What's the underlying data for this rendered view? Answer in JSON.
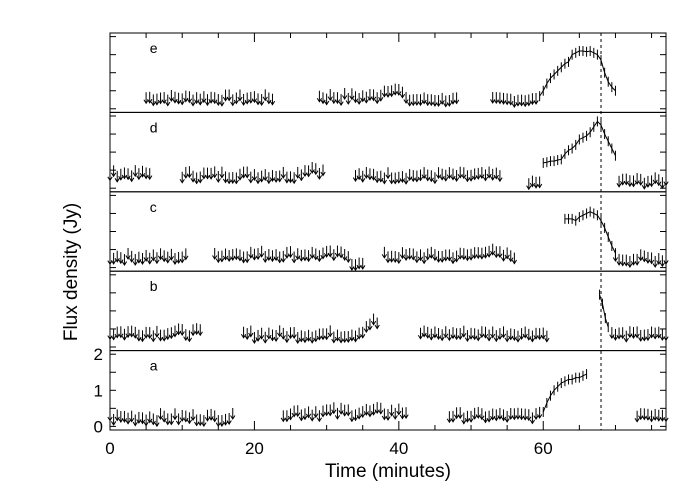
{
  "chart_data": {
    "type": "scatter",
    "xlabel": "Time (minutes)",
    "ylabel": "Flux density (Jy)",
    "xlim": [
      0,
      77
    ],
    "x_ticks": [
      "0",
      "20",
      "40",
      "60"
    ],
    "y_ticks_panel_a": [
      "0",
      "1",
      "2"
    ],
    "ylim_panel": [
      -0.1,
      2.1
    ],
    "grid": false,
    "legend": "none",
    "reference_line_x": 68,
    "reference_line_style": "dotted",
    "marker": "downward arrow (upper limit) / error bar (detection)",
    "panels": [
      {
        "label": "e",
        "segments": [
          {
            "x_start": 5,
            "x_end": 22.5,
            "level": 0.35,
            "noise": 0.08,
            "kind": "limit"
          },
          {
            "x_start": 29,
            "x_end": 40.5,
            "level": 0.38,
            "noise": 0.1,
            "bump_at": 39,
            "bump": 0.25,
            "kind": "limit"
          },
          {
            "x_start": 41,
            "x_end": 48,
            "level": 0.3,
            "noise": 0.06,
            "kind": "limit"
          },
          {
            "x_start": 53,
            "x_end": 59,
            "level": 0.3,
            "noise": 0.06,
            "kind": "limit"
          }
        ],
        "detections": [
          {
            "x": 59.5,
            "y": 0.35
          },
          {
            "x": 60.0,
            "y": 0.5
          },
          {
            "x": 60.5,
            "y": 0.7
          },
          {
            "x": 61.0,
            "y": 0.85
          },
          {
            "x": 61.5,
            "y": 0.95
          },
          {
            "x": 62.0,
            "y": 1.05
          },
          {
            "x": 62.5,
            "y": 1.15
          },
          {
            "x": 63.0,
            "y": 1.25
          },
          {
            "x": 63.5,
            "y": 1.3
          },
          {
            "x": 64.0,
            "y": 1.5
          },
          {
            "x": 64.5,
            "y": 1.55
          },
          {
            "x": 65.0,
            "y": 1.6
          },
          {
            "x": 65.5,
            "y": 1.6
          },
          {
            "x": 66.0,
            "y": 1.58
          },
          {
            "x": 66.5,
            "y": 1.6
          },
          {
            "x": 67.0,
            "y": 1.55
          },
          {
            "x": 67.5,
            "y": 1.5
          },
          {
            "x": 68.0,
            "y": 1.35
          },
          {
            "x": 68.5,
            "y": 1.0
          },
          {
            "x": 69.0,
            "y": 0.75
          },
          {
            "x": 69.5,
            "y": 0.6
          },
          {
            "x": 70.0,
            "y": 0.5
          }
        ]
      },
      {
        "label": "d",
        "segments": [
          {
            "x_start": 0,
            "x_end": 5.5,
            "level": 0.45,
            "noise": 0.08,
            "kind": "limit"
          },
          {
            "x_start": 10,
            "x_end": 29.5,
            "level": 0.42,
            "noise": 0.1,
            "bump_at": 28,
            "bump": 0.2,
            "kind": "limit"
          },
          {
            "x_start": 34,
            "x_end": 54,
            "level": 0.4,
            "noise": 0.09,
            "kind": "limit"
          },
          {
            "x_start": 58,
            "x_end": 59.5,
            "level": 0.2,
            "noise": 0.04,
            "kind": "limit"
          },
          {
            "x_start": 70.5,
            "x_end": 77,
            "level": 0.25,
            "noise": 0.08,
            "kind": "limit"
          }
        ],
        "detections": [
          {
            "x": 60.0,
            "y": 0.7
          },
          {
            "x": 60.5,
            "y": 0.72
          },
          {
            "x": 61.0,
            "y": 0.75
          },
          {
            "x": 61.5,
            "y": 0.75
          },
          {
            "x": 62.0,
            "y": 0.78
          },
          {
            "x": 62.5,
            "y": 0.8
          },
          {
            "x": 63.0,
            "y": 0.95
          },
          {
            "x": 63.5,
            "y": 1.05
          },
          {
            "x": 64.0,
            "y": 1.1
          },
          {
            "x": 64.5,
            "y": 1.2
          },
          {
            "x": 65.0,
            "y": 1.35
          },
          {
            "x": 65.5,
            "y": 1.4
          },
          {
            "x": 66.0,
            "y": 1.45
          },
          {
            "x": 66.5,
            "y": 1.55
          },
          {
            "x": 67.0,
            "y": 1.7
          },
          {
            "x": 67.5,
            "y": 1.85
          },
          {
            "x": 68.0,
            "y": 1.75
          },
          {
            "x": 68.5,
            "y": 1.5
          },
          {
            "x": 69.0,
            "y": 1.3
          },
          {
            "x": 69.5,
            "y": 1.1
          },
          {
            "x": 70.0,
            "y": 0.9
          }
        ]
      },
      {
        "label": "c",
        "segments": [
          {
            "x_start": 0,
            "x_end": 10.5,
            "level": 0.35,
            "noise": 0.09,
            "kind": "limit"
          },
          {
            "x_start": 14.5,
            "x_end": 33,
            "level": 0.42,
            "noise": 0.09,
            "kind": "limit"
          },
          {
            "x_start": 33.5,
            "x_end": 35,
            "level": 0.15,
            "noise": 0.04,
            "kind": "limit"
          },
          {
            "x_start": 38,
            "x_end": 56,
            "level": 0.38,
            "noise": 0.09,
            "bump_at": 52,
            "bump": 0.15,
            "kind": "limit"
          },
          {
            "x_start": 70,
            "x_end": 77,
            "level": 0.3,
            "noise": 0.1,
            "kind": "limit"
          }
        ],
        "detections": [
          {
            "x": 63.0,
            "y": 1.35
          },
          {
            "x": 63.5,
            "y": 1.35
          },
          {
            "x": 64.0,
            "y": 1.35
          },
          {
            "x": 64.5,
            "y": 1.3
          },
          {
            "x": 65.0,
            "y": 1.4
          },
          {
            "x": 65.5,
            "y": 1.45
          },
          {
            "x": 66.0,
            "y": 1.5
          },
          {
            "x": 66.5,
            "y": 1.55
          },
          {
            "x": 67.0,
            "y": 1.5
          },
          {
            "x": 67.5,
            "y": 1.45
          },
          {
            "x": 68.0,
            "y": 1.3
          },
          {
            "x": 68.5,
            "y": 1.1
          },
          {
            "x": 69.0,
            "y": 0.85
          },
          {
            "x": 69.5,
            "y": 0.6
          },
          {
            "x": 70.0,
            "y": 0.4
          }
        ]
      },
      {
        "label": "b",
        "segments": [
          {
            "x_start": 0,
            "x_end": 12.5,
            "level": 0.45,
            "noise": 0.1,
            "kind": "limit"
          },
          {
            "x_start": 18.5,
            "x_end": 37,
            "level": 0.4,
            "noise": 0.1,
            "bump_at": 36.5,
            "bump": 0.35,
            "kind": "limit"
          },
          {
            "x_start": 43,
            "x_end": 60.5,
            "level": 0.42,
            "noise": 0.08,
            "kind": "limit"
          },
          {
            "x_start": 69.5,
            "x_end": 77,
            "level": 0.4,
            "noise": 0.07,
            "kind": "limit"
          }
        ],
        "detections": [
          {
            "x": 67.8,
            "y": 1.45
          },
          {
            "x": 68.2,
            "y": 1.2
          },
          {
            "x": 68.6,
            "y": 0.8
          },
          {
            "x": 69.0,
            "y": 0.55
          }
        ]
      },
      {
        "label": "a",
        "segments": [
          {
            "x_start": 0,
            "x_end": 17,
            "level": 0.3,
            "noise": 0.1,
            "kind": "limit"
          },
          {
            "x_start": 24,
            "x_end": 41,
            "level": 0.45,
            "noise": 0.12,
            "kind": "limit"
          },
          {
            "x_start": 47,
            "x_end": 59.5,
            "level": 0.35,
            "noise": 0.08,
            "kind": "limit"
          },
          {
            "x_start": 73,
            "x_end": 77,
            "level": 0.4,
            "noise": 0.1,
            "kind": "limit"
          }
        ],
        "detections": [
          {
            "x": 60.0,
            "y": 0.4
          },
          {
            "x": 60.5,
            "y": 0.65
          },
          {
            "x": 61.0,
            "y": 0.85
          },
          {
            "x": 61.5,
            "y": 1.0
          },
          {
            "x": 62.0,
            "y": 1.1
          },
          {
            "x": 62.5,
            "y": 1.2
          },
          {
            "x": 63.0,
            "y": 1.25
          },
          {
            "x": 63.5,
            "y": 1.3
          },
          {
            "x": 64.0,
            "y": 1.3
          },
          {
            "x": 64.5,
            "y": 1.35
          },
          {
            "x": 65.0,
            "y": 1.35
          },
          {
            "x": 65.5,
            "y": 1.4
          },
          {
            "x": 66.0,
            "y": 1.45
          }
        ]
      }
    ]
  }
}
